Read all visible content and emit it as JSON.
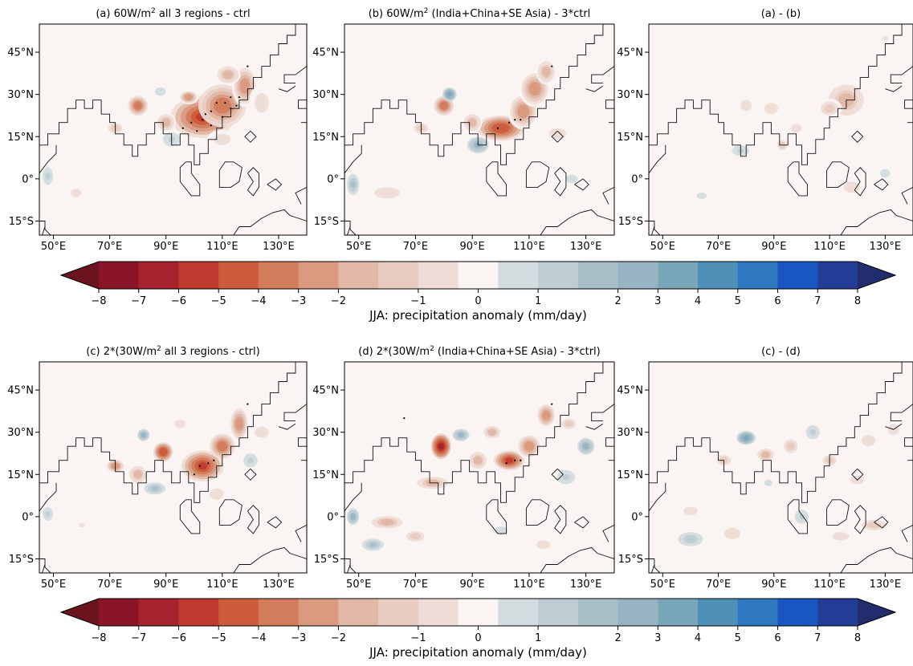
{
  "chart_data": {
    "type": "heatmap",
    "map_x_ticks": [
      "50°E",
      "70°E",
      "90°E",
      "110°E",
      "130°E"
    ],
    "map_x_values": [
      50,
      70,
      90,
      110,
      130
    ],
    "map_y_ticks": [
      "45°N",
      "30°N",
      "15°N",
      "0°",
      "15°S"
    ],
    "map_y_values": [
      45,
      30,
      15,
      0,
      -15
    ],
    "xlim": [
      45,
      140
    ],
    "ylim": [
      -20,
      55
    ],
    "panels": [
      {
        "id": "a",
        "title_pre": "(a) 60W/m",
        "title_sup": "2",
        "title_post": " all 3 regions - ctrl",
        "blobs": [
          [
            103,
            22,
            11,
            7,
            -6
          ],
          [
            110,
            26,
            8,
            7,
            -4
          ],
          [
            118,
            33,
            4,
            7,
            -3
          ],
          [
            98,
            29,
            3,
            2,
            -3
          ],
          [
            80,
            26,
            3,
            3,
            -4
          ],
          [
            90,
            20,
            3,
            3,
            -2
          ],
          [
            112,
            37,
            4,
            3,
            -2
          ],
          [
            72,
            18,
            3,
            2,
            -1.5
          ],
          [
            92,
            14,
            4,
            3,
            1
          ],
          [
            124,
            27,
            4,
            6,
            -1
          ],
          [
            110,
            14,
            5,
            3,
            -1
          ],
          [
            88,
            31,
            3,
            2,
            0.8
          ],
          [
            48,
            1,
            2,
            4,
            1
          ],
          [
            58,
            -5,
            4,
            3,
            -0.7
          ]
        ],
        "stipples": [
          [
            103,
            21
          ],
          [
            106,
            24
          ],
          [
            108,
            27
          ],
          [
            111,
            27
          ],
          [
            113,
            25
          ],
          [
            116,
            29
          ],
          [
            106,
            19
          ],
          [
            101,
            17
          ],
          [
            99,
            20
          ],
          [
            104,
            23
          ],
          [
            110,
            22
          ],
          [
            115,
            26
          ],
          [
            113,
            29
          ],
          [
            119,
            40
          ],
          [
            96,
            18
          ]
        ]
      },
      {
        "id": "b",
        "title_pre": "(b) 60W/m",
        "title_sup": "2",
        "title_post": " (India+China+SE Asia) - 3*ctrl",
        "blobs": [
          [
            100,
            18,
            8,
            4,
            -5
          ],
          [
            108,
            24,
            5,
            6,
            -3
          ],
          [
            112,
            32,
            5,
            6,
            -3
          ],
          [
            80,
            26,
            3,
            3,
            -4
          ],
          [
            82,
            30,
            2,
            2,
            3
          ],
          [
            116,
            38,
            3,
            4,
            -2
          ],
          [
            90,
            20,
            3,
            3,
            -2
          ],
          [
            92,
            12,
            4,
            3,
            2
          ],
          [
            60,
            -5,
            8,
            3,
            -0.8
          ],
          [
            48,
            -2,
            2,
            4,
            1.5
          ],
          [
            120,
            16,
            5,
            3,
            -0.8
          ],
          [
            125,
            0,
            5,
            3,
            0.7
          ],
          [
            72,
            18,
            3,
            2,
            -1.5
          ]
        ],
        "stipples": [
          [
            99,
            18
          ],
          [
            103,
            20
          ],
          [
            105,
            21
          ],
          [
            107,
            21
          ],
          [
            118,
            40
          ]
        ]
      },
      {
        "id": "ab",
        "title_pre": "(a) - (b)",
        "title_sup": "",
        "title_post": "",
        "blobs": [
          [
            116,
            28,
            7,
            6,
            -2
          ],
          [
            110,
            25,
            4,
            3,
            -1.5
          ],
          [
            80,
            26,
            3,
            3,
            -1
          ],
          [
            89,
            25,
            4,
            3,
            -1
          ],
          [
            93,
            12,
            2,
            2,
            -1.5
          ],
          [
            98,
            18,
            3,
            2,
            -0.8
          ],
          [
            118,
            -3,
            5,
            3,
            -1
          ],
          [
            130,
            2,
            4,
            3,
            0.7
          ],
          [
            78,
            10,
            4,
            2,
            1
          ],
          [
            64,
            -6,
            4,
            2,
            0.6
          ],
          [
            130,
            50,
            3,
            2,
            -0.6
          ]
        ],
        "stipples": []
      },
      {
        "id": "c",
        "title_pre": "(c) 2*(30W/m",
        "title_sup": "2",
        "title_post": " all 3 regions - ctrl)",
        "blobs": [
          [
            103,
            18,
            7,
            5,
            -6
          ],
          [
            110,
            25,
            4,
            4,
            -4
          ],
          [
            116,
            33,
            3,
            6,
            -3
          ],
          [
            89,
            23,
            3,
            3,
            -5
          ],
          [
            82,
            29,
            2,
            2,
            2
          ],
          [
            72,
            18,
            3,
            2,
            -3
          ],
          [
            80,
            15,
            3,
            3,
            -2
          ],
          [
            124,
            30,
            4,
            3,
            -1
          ],
          [
            108,
            8,
            4,
            3,
            -1
          ],
          [
            86,
            10,
            4,
            2,
            1.5
          ],
          [
            120,
            20,
            3,
            3,
            1
          ],
          [
            95,
            33,
            3,
            2,
            -1
          ],
          [
            48,
            1,
            2,
            3,
            1
          ],
          [
            60,
            -3,
            3,
            2,
            -0.6
          ]
        ],
        "stipples": [
          [
            102,
            18
          ],
          [
            105,
            19
          ],
          [
            107,
            20
          ],
          [
            100,
            15
          ],
          [
            119,
            40
          ]
        ]
      },
      {
        "id": "d",
        "title_pre": "(d) 2*(30W/m",
        "title_sup": "2",
        "title_post": " (India+China+SE Asia) - 3*ctrl)",
        "blobs": [
          [
            79,
            25,
            3,
            4,
            -7
          ],
          [
            103,
            20,
            5,
            3,
            -6
          ],
          [
            110,
            25,
            4,
            4,
            -3
          ],
          [
            116,
            36,
            3,
            4,
            -3
          ],
          [
            86,
            29,
            3,
            2,
            2
          ],
          [
            130,
            25,
            3,
            3,
            2
          ],
          [
            97,
            30,
            3,
            2,
            -2
          ],
          [
            92,
            20,
            3,
            3,
            -2
          ],
          [
            76,
            12,
            6,
            2,
            -2
          ],
          [
            60,
            -2,
            6,
            2,
            -2
          ],
          [
            55,
            -10,
            4,
            2,
            1.5
          ],
          [
            70,
            -7,
            4,
            2,
            -1.5
          ],
          [
            48,
            0,
            2,
            3,
            2
          ],
          [
            124,
            33,
            3,
            2,
            -1.5
          ],
          [
            123,
            14,
            4,
            3,
            1
          ],
          [
            100,
            -5,
            4,
            2,
            0.8
          ],
          [
            115,
            -10,
            4,
            2,
            -0.8
          ]
        ],
        "stipples": [
          [
            102,
            19
          ],
          [
            105,
            20
          ],
          [
            107,
            20
          ],
          [
            118,
            40
          ],
          [
            66,
            35
          ]
        ]
      },
      {
        "id": "cd",
        "title_pre": "(c) - (d)",
        "title_sup": "",
        "title_post": "",
        "blobs": [
          [
            80,
            28,
            3,
            2,
            3
          ],
          [
            87,
            22,
            3,
            2,
            -2
          ],
          [
            96,
            25,
            3,
            3,
            -1.5
          ],
          [
            110,
            20,
            3,
            2,
            -1.5
          ],
          [
            72,
            20,
            3,
            2,
            -1.5
          ],
          [
            124,
            27,
            4,
            3,
            -1
          ],
          [
            133,
            31,
            3,
            3,
            -0.8
          ],
          [
            60,
            2,
            4,
            2,
            -1
          ],
          [
            60,
            -8,
            6,
            3,
            1.2
          ],
          [
            75,
            -6,
            5,
            3,
            -1
          ],
          [
            100,
            0,
            3,
            3,
            1
          ],
          [
            126,
            -3,
            6,
            2,
            -1.5
          ],
          [
            114,
            -7,
            5,
            2,
            -1
          ],
          [
            104,
            30,
            3,
            3,
            1
          ],
          [
            88,
            12,
            3,
            2,
            0.7
          ],
          [
            120,
            13,
            4,
            2,
            -0.8
          ]
        ],
        "stipples": []
      }
    ],
    "colorbar": {
      "label": "JJA: precipitation anomaly (mm/day)",
      "tick_labels": [
        "−8",
        "−7",
        "−6",
        "−5",
        "−4",
        "−3",
        "−2",
        "−1",
        "0",
        "1",
        "2",
        "3",
        "4",
        "5",
        "6",
        "7",
        "8"
      ],
      "tick_values": [
        -8,
        -7,
        -6,
        -5,
        -4,
        -3,
        -2,
        -1,
        0,
        1,
        2,
        3,
        4,
        5,
        6,
        7,
        8
      ],
      "boundaries": [
        -8,
        -7,
        -6,
        -5,
        -4,
        -3,
        -2,
        -1.5,
        -1,
        -0.5,
        0.5,
        1,
        1.5,
        2,
        3,
        4,
        5,
        6,
        7,
        8
      ],
      "colors": [
        "#8a1428",
        "#a6222c",
        "#c13a30",
        "#cd5c3c",
        "#d37c5c",
        "#d99a80",
        "#e1b7a5",
        "#e8cbc1",
        "#efdcd7",
        "#faf4f3",
        "#d4dcdf",
        "#bdcdd3",
        "#a8bfc8",
        "#96b4c1",
        "#7aa6ba",
        "#4f90b9",
        "#2f77be",
        "#1a56c2",
        "#233d96"
      ],
      "extend_low": "#6b1420",
      "extend_high": "#232d6e"
    }
  }
}
